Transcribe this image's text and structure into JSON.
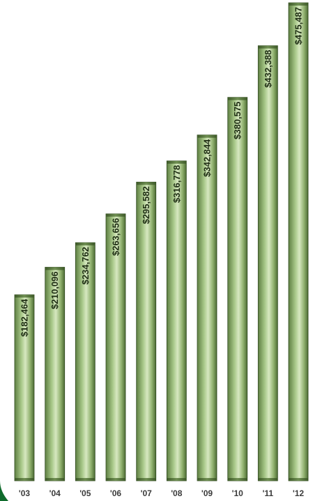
{
  "chart_data": {
    "type": "bar",
    "categories": [
      "'03",
      "'04",
      "'05",
      "'06",
      "'07",
      "'08",
      "'09",
      "'10",
      "'11",
      "'12"
    ],
    "values": [
      182464,
      210096,
      234762,
      263656,
      295582,
      316778,
      342844,
      380575,
      432388,
      475487
    ],
    "value_labels": [
      "$182,464",
      "$210,096",
      "$234,762",
      "$263,656",
      "$295,582",
      "$316,778",
      "$342,844",
      "$380,575",
      "$432,388",
      "$475,487"
    ],
    "title": "",
    "xlabel": "",
    "ylabel": "",
    "ylim": [
      0,
      480000
    ],
    "grid": false,
    "legend": "none",
    "colors": {
      "bar_dark": "#5e7f42",
      "bar_mid": "#a9c98a",
      "bar_light": "#d7e8c1",
      "bar_edge": "#2f4a1f",
      "corner_accent": "#0f6b2c"
    }
  }
}
